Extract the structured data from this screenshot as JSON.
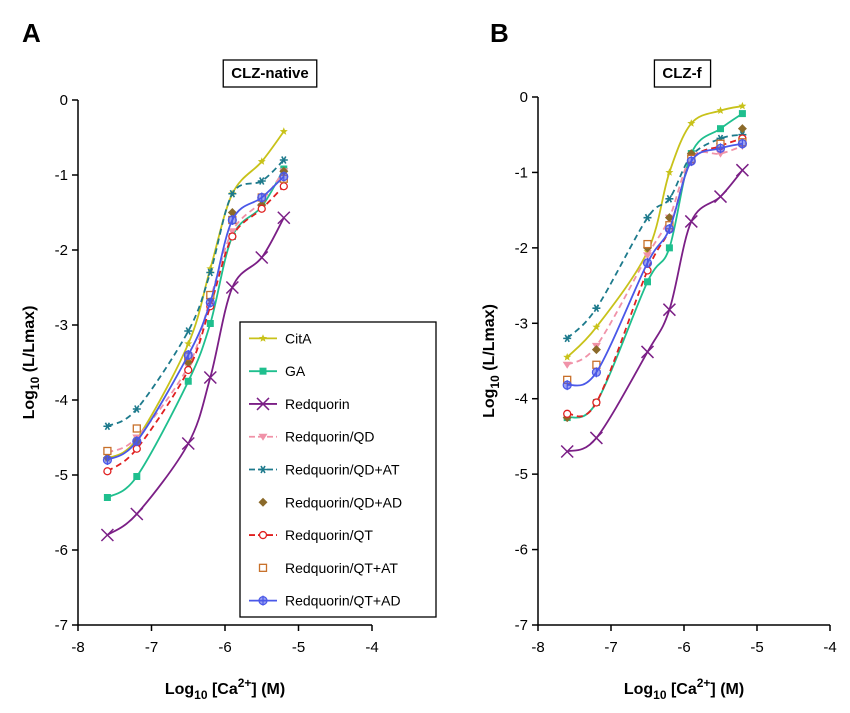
{
  "chart_data": [
    {
      "panel": "A",
      "type": "line",
      "title": "CLZ-native",
      "xlabel": "Log10 [Ca2+]  (M)",
      "ylabel": "Log10 (L/Lmax)",
      "xlim": [
        -8,
        -4
      ],
      "ylim": [
        -7,
        0
      ],
      "xticks": [
        -8,
        -7,
        -6,
        -5,
        -4
      ],
      "yticks": [
        0,
        -1,
        -2,
        -3,
        -4,
        -5,
        -6,
        -7
      ],
      "legend": "center-right (inside)",
      "x": [
        -7.6,
        -7.2,
        -6.5,
        -6.2,
        -5.9,
        -5.5,
        -5.2
      ],
      "series": [
        {
          "name": "CitA",
          "color": "#c8c21a",
          "dash": "solid",
          "marker": "star",
          "values": [
            -4.78,
            -4.52,
            -3.25,
            -2.25,
            -1.25,
            -0.82,
            -0.42
          ]
        },
        {
          "name": "GA",
          "color": "#1fbf8e",
          "dash": "solid",
          "marker": "square",
          "values": [
            -5.3,
            -5.02,
            -3.75,
            -2.98,
            -1.82,
            -1.42,
            -0.92
          ]
        },
        {
          "name": "Redquorin",
          "color": "#7b1f86",
          "dash": "solid",
          "marker": "cross",
          "values": [
            -5.8,
            -5.52,
            -4.58,
            -3.7,
            -2.5,
            -2.1,
            -1.57
          ]
        },
        {
          "name": "Redquorin/QD",
          "color": "#f092a8",
          "dash": "dash",
          "marker": "triangle-down",
          "values": [
            -4.7,
            -4.5,
            -3.55,
            -2.65,
            -1.75,
            -1.35,
            -0.95
          ]
        },
        {
          "name": "Redquorin/QD+AT",
          "color": "#1d7a8c",
          "dash": "dash",
          "marker": "asterisk",
          "values": [
            -4.35,
            -4.12,
            -3.08,
            -2.3,
            -1.25,
            -1.08,
            -0.8
          ]
        },
        {
          "name": "Redquorin/QD+AD",
          "color": "#8b6a2a",
          "dash": "none",
          "marker": "diamond",
          "values": [
            -4.77,
            -4.55,
            -3.5,
            -2.65,
            -1.5,
            -1.4,
            -0.95
          ]
        },
        {
          "name": "Redquorin/QT",
          "color": "#e02020",
          "dash": "dash",
          "marker": "circle-open",
          "values": [
            -4.95,
            -4.65,
            -3.6,
            -2.75,
            -1.82,
            -1.45,
            -1.15
          ]
        },
        {
          "name": "Redquorin/QT+AT",
          "color": "#c8702a",
          "dash": "none",
          "marker": "square-open",
          "values": [
            -4.68,
            -4.38,
            -3.42,
            -2.6,
            -1.6,
            -1.3,
            -1.05
          ]
        },
        {
          "name": "Redquorin/QT+AD",
          "color": "#4a58e8",
          "dash": "solid",
          "marker": "circle-bar",
          "values": [
            -4.8,
            -4.55,
            -3.4,
            -2.7,
            -1.6,
            -1.3,
            -1.02
          ]
        }
      ]
    },
    {
      "panel": "B",
      "type": "line",
      "title": "CLZ-f",
      "xlabel": "Log10 [Ca2+]  (M)",
      "ylabel": "Log10 (L/Lmax)",
      "xlim": [
        -8,
        -4
      ],
      "ylim": [
        -7,
        0
      ],
      "xticks": [
        -8,
        -7,
        -6,
        -5,
        -4
      ],
      "yticks": [
        0,
        -1,
        -2,
        -3,
        -4,
        -5,
        -6,
        -7
      ],
      "x": [
        -7.6,
        -7.2,
        -6.5,
        -6.2,
        -5.9,
        -5.5,
        -5.2
      ],
      "series": [
        {
          "name": "CitA",
          "color": "#c8c21a",
          "dash": "solid",
          "marker": "star",
          "values": [
            -3.45,
            -3.05,
            -2.05,
            -1.0,
            -0.35,
            -0.18,
            -0.12
          ]
        },
        {
          "name": "GA",
          "color": "#1fbf8e",
          "dash": "solid",
          "marker": "square",
          "values": [
            -4.25,
            -4.05,
            -2.45,
            -2.0,
            -0.75,
            -0.42,
            -0.22
          ]
        },
        {
          "name": "Redquorin",
          "color": "#7b1f86",
          "dash": "solid",
          "marker": "cross",
          "values": [
            -4.7,
            -4.52,
            -3.38,
            -2.82,
            -1.65,
            -1.32,
            -0.97
          ]
        },
        {
          "name": "Redquorin/QD",
          "color": "#f092a8",
          "dash": "dash",
          "marker": "triangle-down",
          "values": [
            -3.55,
            -3.3,
            -2.1,
            -1.6,
            -0.8,
            -0.75,
            -0.65
          ]
        },
        {
          "name": "Redquorin/QD+AT",
          "color": "#1d7a8c",
          "dash": "dash",
          "marker": "asterisk",
          "values": [
            -3.2,
            -2.8,
            -1.6,
            -1.35,
            -0.78,
            -0.55,
            -0.5
          ]
        },
        {
          "name": "Redquorin/QD+AD",
          "color": "#8b6a2a",
          "dash": "none",
          "marker": "diamond",
          "values": [
            -4.25,
            -3.35,
            -2.0,
            -1.6,
            -0.75,
            -0.62,
            -0.42
          ]
        },
        {
          "name": "Redquorin/QT",
          "color": "#e02020",
          "dash": "dash",
          "marker": "circle-open",
          "values": [
            -4.2,
            -4.05,
            -2.3,
            -1.75,
            -0.85,
            -0.65,
            -0.55
          ]
        },
        {
          "name": "Redquorin/QT+AT",
          "color": "#c8702a",
          "dash": "none",
          "marker": "square-open",
          "values": [
            -3.75,
            -3.55,
            -1.95,
            -1.7,
            -0.82,
            -0.62,
            -0.6
          ]
        },
        {
          "name": "Redquorin/QT+AD",
          "color": "#4a58e8",
          "dash": "solid",
          "marker": "circle-bar",
          "values": [
            -3.82,
            -3.65,
            -2.2,
            -1.75,
            -0.85,
            -0.68,
            -0.62
          ]
        }
      ]
    }
  ]
}
